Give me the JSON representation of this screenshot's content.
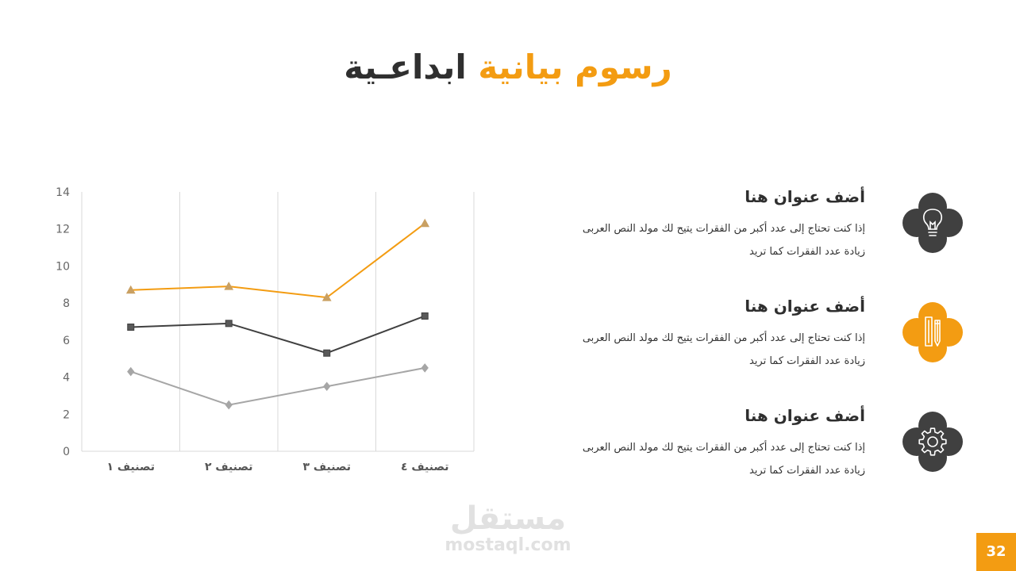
{
  "title": {
    "part_orange": "رسوم بيانية",
    "part_dark": "ابداعـية"
  },
  "colors": {
    "orange": "#f39c12",
    "dark": "#404040",
    "gray": "#a6a6a6"
  },
  "chart_data": {
    "type": "line",
    "categories": [
      "تصنيف ١",
      "تصنيف ٢",
      "تصنيف ٣",
      "تصنيف ٤"
    ],
    "series": [
      {
        "values": [
          8.7,
          8.9,
          8.3,
          12.3
        ],
        "color": "#f39c12",
        "marker": "triangle"
      },
      {
        "values": [
          6.7,
          6.9,
          5.3,
          7.3
        ],
        "color": "#404040",
        "marker": "square"
      },
      {
        "values": [
          4.3,
          2.5,
          3.5,
          4.5
        ],
        "color": "#a6a6a6",
        "marker": "diamond"
      }
    ],
    "ylim": [
      0,
      14
    ],
    "yticks": [
      "0",
      "2",
      "4",
      "6",
      "8",
      "10",
      "12",
      "14"
    ],
    "grid": "vertical"
  },
  "features": [
    {
      "title": "أضف عنوان هنا",
      "desc_line1": "إذا كنت تحتاج إلى عدد أكبر من الفقرات يتيح لك مولد النص العربى",
      "desc_line2": "زيادة عدد الفقرات كما تريد",
      "icon": "lightbulb-icon",
      "color": "#404040"
    },
    {
      "title": "أضف عنوان هنا",
      "desc_line1": "إذا كنت تحتاج إلى عدد أكبر من الفقرات يتيح لك مولد النص العربى",
      "desc_line2": "زيادة عدد الفقرات كما تريد",
      "icon": "ruler-pencil-icon",
      "color": "#f39c12"
    },
    {
      "title": "أضف عنوان هنا",
      "desc_line1": "إذا كنت تحتاج إلى عدد أكبر من الفقرات يتيح لك مولد النص العربى",
      "desc_line2": "زيادة عدد الفقرات كما تريد",
      "icon": "gear-icon",
      "color": "#404040"
    }
  ],
  "watermark": {
    "arabic": "مستقل",
    "latin": "mostaql.com"
  },
  "page_number": "32"
}
